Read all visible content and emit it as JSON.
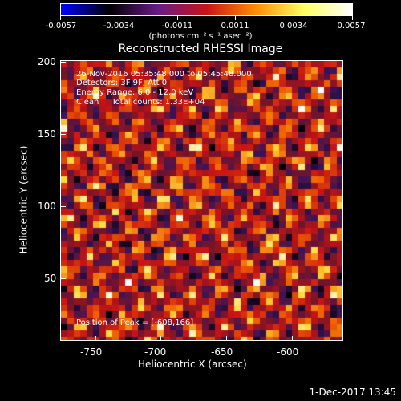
{
  "colorbar": {
    "tick_labels": [
      "-0.0057",
      "-0.0034",
      "-0.0011",
      "0.0011",
      "0.0034",
      "0.0057"
    ],
    "units_label": "(photons cm⁻² s⁻¹ asec⁻²)",
    "gradient_stops": [
      "#0000ff",
      "#000000",
      "#6a1a8a",
      "#c81414",
      "#ff8c00",
      "#ffff60",
      "#ffffff"
    ]
  },
  "title": "Reconstructed RHESSI Image",
  "info_lines": {
    "time": "26-Nov-2016 05:35:48.000 to 05:45:48.000",
    "detectors": "Detectors: 3F 9F, Att 0",
    "energy": "Energy Range: 6.0 - 12.0 keV",
    "clean": "Clean     Total counts: 1.33E+04"
  },
  "peak_text": "Position of Peak = [-608,166]",
  "axes": {
    "xlabel": "Heliocentric X (arcsec)",
    "ylabel": "Heliocentric Y (arcsec)",
    "xticks": [
      "-750",
      "-700",
      "-650",
      "-600"
    ],
    "yticks": [
      "50",
      "100",
      "150",
      "200"
    ]
  },
  "footer_date": "1-Dec-2017 13:45"
}
